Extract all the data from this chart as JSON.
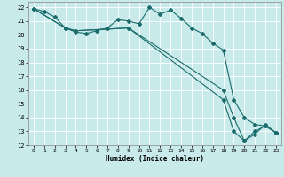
{
  "xlabel": "Humidex (Indice chaleur)",
  "ylabel": "",
  "xlim": [
    -0.5,
    23.5
  ],
  "ylim": [
    12,
    22.4
  ],
  "yticks": [
    12,
    13,
    14,
    15,
    16,
    17,
    18,
    19,
    20,
    21,
    22
  ],
  "xticks": [
    0,
    1,
    2,
    3,
    4,
    5,
    6,
    7,
    8,
    9,
    10,
    11,
    12,
    13,
    14,
    15,
    16,
    17,
    18,
    19,
    20,
    21,
    22,
    23
  ],
  "background_color": "#c8eaea",
  "grid_color": "#b8d8d8",
  "line_color": "#1a6b6b",
  "series": [
    {
      "x": [
        0,
        1,
        2,
        3,
        4,
        5,
        6,
        7,
        8,
        9,
        10,
        11,
        12,
        13,
        14,
        15,
        16,
        17,
        18,
        19,
        20,
        21,
        22,
        23
      ],
      "y": [
        21.9,
        21.7,
        21.3,
        20.5,
        20.2,
        20.1,
        20.3,
        20.5,
        21.1,
        21.0,
        20.8,
        22.0,
        21.5,
        21.8,
        21.2,
        20.5,
        20.1,
        19.4,
        18.9,
        15.3,
        14.0,
        13.5,
        13.4,
        12.9
      ]
    },
    {
      "x": [
        0,
        3,
        4,
        9,
        18,
        19,
        20,
        21,
        22,
        23
      ],
      "y": [
        21.9,
        20.5,
        20.3,
        20.5,
        16.0,
        14.0,
        12.3,
        12.8,
        13.5,
        12.9
      ]
    },
    {
      "x": [
        0,
        3,
        4,
        9,
        18,
        19,
        20,
        21,
        22,
        23
      ],
      "y": [
        21.9,
        20.5,
        20.3,
        20.5,
        15.3,
        13.0,
        12.3,
        13.0,
        13.4,
        12.9
      ]
    }
  ]
}
